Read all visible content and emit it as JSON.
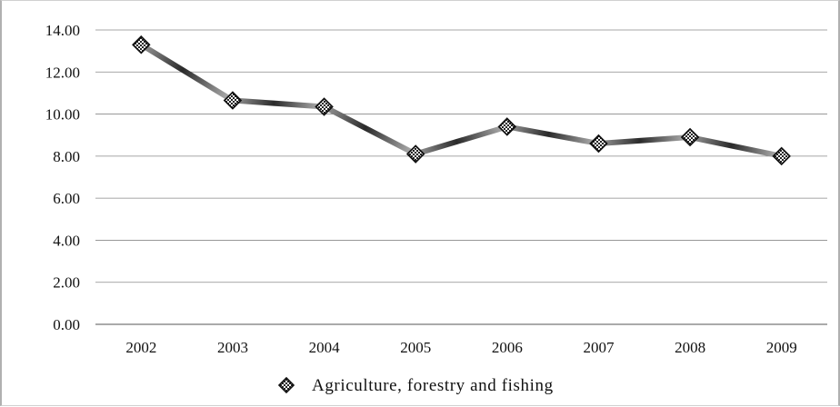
{
  "chart_data": {
    "type": "line",
    "categories": [
      "2002",
      "2003",
      "2004",
      "2005",
      "2006",
      "2007",
      "2008",
      "2009"
    ],
    "series": [
      {
        "name": "Agriculture, forestry and fishing",
        "values": [
          13.3,
          10.65,
          10.35,
          8.1,
          9.4,
          8.6,
          8.9,
          8.0
        ]
      }
    ],
    "title": "",
    "xlabel": "",
    "ylabel": "",
    "ylim": [
      0,
      14
    ],
    "yticks": [
      "0.00",
      "2.00",
      "4.00",
      "6.00",
      "8.00",
      "10.00",
      "12.00",
      "14.00"
    ],
    "grid": true,
    "legend_position": "bottom",
    "line_color": "#5a5a5a"
  }
}
